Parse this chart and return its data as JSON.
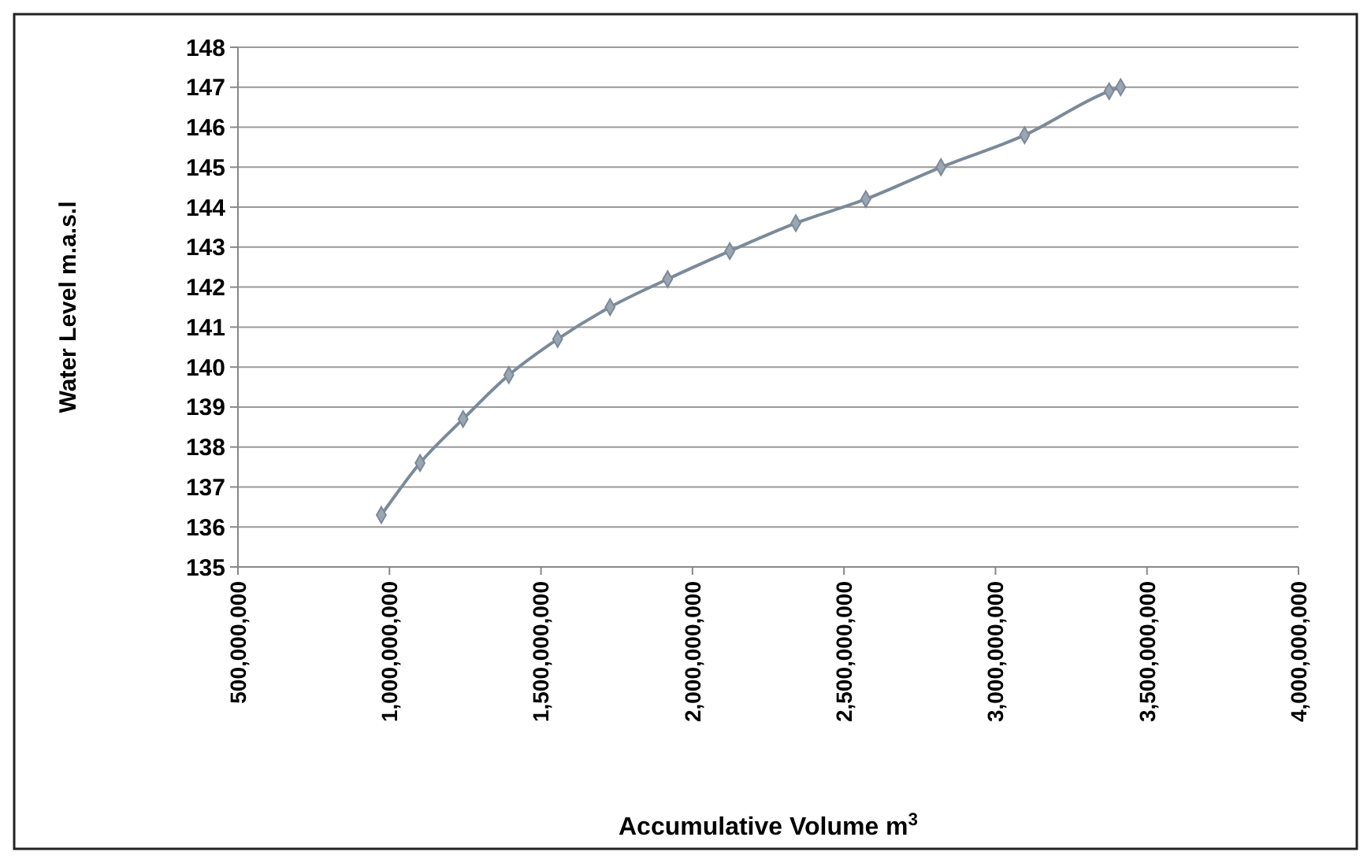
{
  "chart_data": {
    "type": "line",
    "xlabel": "Accumulative Volume m$^{3}$",
    "ylabel": "Water Level m.a.s.l",
    "x": [
      973000000,
      1101000000,
      1243000000,
      1394000000,
      1555000000,
      1728000000,
      1918000000,
      2123000000,
      2341000000,
      2572000000,
      2820000000,
      3096000000,
      3375000000,
      3413000000
    ],
    "series": [
      {
        "color": "#7b8a99",
        "values": [
          136.3,
          137.6,
          138.7,
          139.8,
          140.7,
          141.5,
          142.2,
          142.9,
          143.6,
          144.2,
          145.0,
          145.8,
          146.9,
          147.0
        ]
      }
    ],
    "xlim": [
      500000000,
      4000000000
    ],
    "xticks": [
      {
        "value": 500000000,
        "label": "500,000,000"
      },
      {
        "value": 1000000000,
        "label": "1,000,000,000"
      },
      {
        "value": 1500000000,
        "label": "1,500,000,000"
      },
      {
        "value": 2000000000,
        "label": "2,000,000,000"
      },
      {
        "value": 2500000000,
        "label": "2,500,000,000"
      },
      {
        "value": 3000000000,
        "label": "3,000,000,000"
      },
      {
        "value": 3500000000,
        "label": "3,500,000,000"
      },
      {
        "value": 4000000000,
        "label": "4,000,000,000"
      }
    ],
    "ylim": [
      135,
      148
    ],
    "yticks": [
      135,
      136,
      137,
      138,
      139,
      140,
      141,
      142,
      143,
      144,
      145,
      146,
      147,
      148
    ],
    "grid": "y",
    "marker": "diamond",
    "line_style": "solid"
  }
}
